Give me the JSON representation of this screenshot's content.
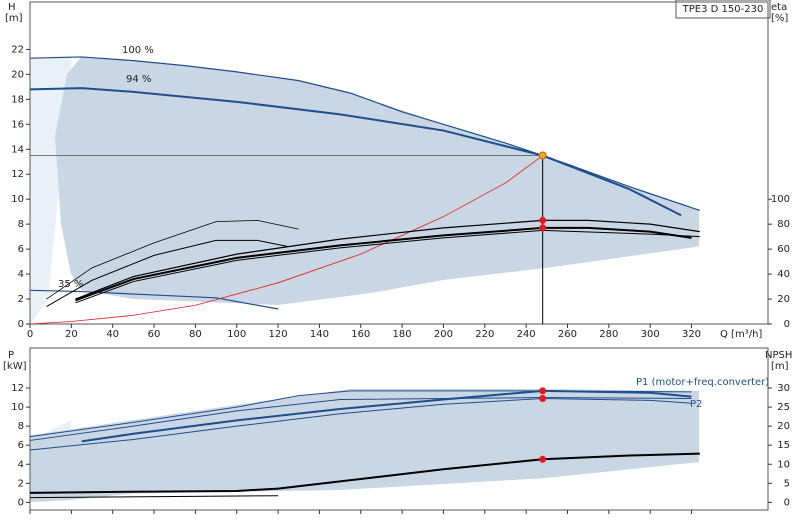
{
  "chart_data": [
    {
      "type": "line",
      "title": "TPE3 D 150-230",
      "y_label": "H",
      "y_unit": "[m]",
      "y2_label": "eta",
      "y2_unit": "[%]",
      "x_label": "Q [m³/h]",
      "annotations": [
        "100 %",
        "94 %",
        "35 %"
      ],
      "xlim": [
        0,
        357
      ],
      "xticks": [
        0,
        20,
        40,
        60,
        80,
        100,
        120,
        140,
        160,
        180,
        200,
        220,
        240,
        260,
        280,
        300,
        320
      ],
      "ylim": [
        0,
        25.8
      ],
      "yticks": [
        0,
        2,
        4,
        6,
        8,
        10,
        12,
        14,
        16,
        18,
        20,
        22
      ],
      "y2lim": [
        0,
        258
      ],
      "y2ticks": [
        0,
        20,
        40,
        60,
        80,
        100
      ],
      "series": [
        {
          "color": "#1f4e8c",
          "width": 1.2,
          "x": [
            0,
            25,
            50,
            75,
            100,
            130,
            155,
            180,
            200,
            230,
            248,
            260,
            290,
            324
          ],
          "values": [
            21.3,
            21.4,
            21.1,
            20.7,
            20.2,
            19.5,
            18.5,
            17,
            16,
            14.5,
            13.5,
            12.8,
            11,
            9.1
          ]
        },
        {
          "color": "#1f4e8c",
          "width": 2,
          "x": [
            0,
            25,
            50,
            100,
            150,
            200,
            248,
            290,
            315
          ],
          "values": [
            18.8,
            18.9,
            18.6,
            17.8,
            16.8,
            15.5,
            13.5,
            10.8,
            8.7
          ]
        },
        {
          "color": "#1f4e8c",
          "width": 1.2,
          "x": [
            0,
            25,
            50,
            90,
            120
          ],
          "values": [
            2.7,
            2.6,
            2.4,
            2.1,
            1.2
          ]
        },
        {
          "color": "#e31a1c",
          "width": 0.8,
          "x": [
            0,
            20,
            50,
            80,
            120,
            160,
            200,
            230,
            248
          ],
          "values": [
            0,
            0.2,
            0.7,
            1.5,
            3.3,
            5.6,
            8.6,
            11.3,
            13.5
          ]
        },
        {
          "color": "#000000",
          "width": 1.2,
          "axis": "y2",
          "x": [
            22,
            50,
            100,
            150,
            200,
            248,
            270,
            300,
            324
          ],
          "values": [
            20,
            38,
            56,
            68,
            77,
            83,
            83,
            80,
            74
          ]
        },
        {
          "color": "#000000",
          "width": 2,
          "axis": "y2",
          "x": [
            22,
            50,
            100,
            150,
            200,
            248,
            270,
            300,
            320
          ],
          "values": [
            19,
            36,
            53,
            63,
            71,
            77,
            77,
            74,
            69
          ]
        },
        {
          "color": "#000000",
          "width": 1,
          "axis": "y2",
          "x": [
            22,
            50,
            100,
            150,
            200,
            248,
            300,
            324
          ],
          "values": [
            17,
            34,
            51,
            61,
            69,
            75,
            72,
            70
          ]
        },
        {
          "color": "#000000",
          "width": 0.8,
          "axis": "y2",
          "x": [
            8,
            30,
            60,
            90,
            110,
            130
          ],
          "values": [
            20,
            45,
            65,
            82,
            83,
            76
          ]
        },
        {
          "color": "#000000",
          "width": 1,
          "axis": "y2",
          "x": [
            8,
            30,
            60,
            90,
            110,
            125
          ],
          "values": [
            14,
            35,
            55,
            67,
            67,
            62
          ]
        }
      ],
      "crosshair": {
        "x": 248,
        "y": 13.5
      },
      "points": [
        {
          "x": 248,
          "y": 13.5,
          "color": "#f5a623"
        },
        {
          "x": 248,
          "y": 83,
          "axis": "y2",
          "color": "#e31a1c"
        },
        {
          "x": 248,
          "y": 77,
          "axis": "y2",
          "color": "#e31a1c"
        }
      ]
    },
    {
      "type": "line",
      "y_label": "P",
      "y_unit": "[kW]",
      "y2_label": "NPSH",
      "y2_unit": "[m]",
      "xlim": [
        0,
        357
      ],
      "xticks": [
        0,
        20,
        40,
        60,
        80,
        100,
        120,
        140,
        160,
        180,
        200,
        220,
        240,
        260,
        280,
        300,
        320
      ],
      "ylim": [
        -0.8,
        16.2
      ],
      "yticks": [
        0,
        2,
        4,
        6,
        8,
        10,
        12
      ],
      "y2lim": [
        -2,
        40.5
      ],
      "y2ticks": [
        0,
        5,
        10,
        15,
        20,
        25,
        30
      ],
      "series": [
        {
          "name": "P1 (motor+freq.converter)",
          "color": "#1f4e8c",
          "width": 1,
          "x": [
            0,
            50,
            100,
            130,
            155,
            248,
            320
          ],
          "values": [
            6.9,
            8.4,
            10,
            11.2,
            11.7,
            11.7,
            11.6
          ]
        },
        {
          "color": "#1f4e8c",
          "width": 1,
          "x": [
            0,
            50,
            100,
            150,
            248,
            320
          ],
          "values": [
            6.5,
            8,
            9.6,
            10.8,
            11,
            10.9
          ]
        },
        {
          "color": "#1f4e8c",
          "width": 2,
          "x": [
            25,
            50,
            100,
            150,
            200,
            248,
            300,
            320
          ],
          "values": [
            6.4,
            7.2,
            8.6,
            9.8,
            10.8,
            11.7,
            11.5,
            11.1
          ]
        },
        {
          "name": "P2",
          "color": "#1f4e8c",
          "width": 1,
          "x": [
            0,
            50,
            100,
            150,
            200,
            248,
            300,
            320
          ],
          "values": [
            5.5,
            6.6,
            8,
            9.3,
            10.3,
            10.9,
            10.7,
            10.4
          ]
        },
        {
          "color": "#000000",
          "width": 1,
          "x": [
            0,
            120
          ],
          "values": [
            0.5,
            0.7
          ]
        },
        {
          "color": "#000000",
          "width": 2,
          "axis": "y2",
          "x": [
            0,
            50,
            100,
            120,
            150,
            200,
            248,
            290,
            324
          ],
          "values": [
            2.5,
            2.8,
            3,
            3.6,
            5.5,
            8.7,
            11.3,
            12.3,
            12.8
          ]
        }
      ],
      "points": [
        {
          "x": 248,
          "y": 11.7,
          "color": "#e31a1c"
        },
        {
          "x": 248,
          "y": 10.9,
          "color": "#e31a1c"
        },
        {
          "x": 248,
          "y": 11.3,
          "axis": "y2",
          "color": "#e31a1c"
        }
      ]
    }
  ]
}
